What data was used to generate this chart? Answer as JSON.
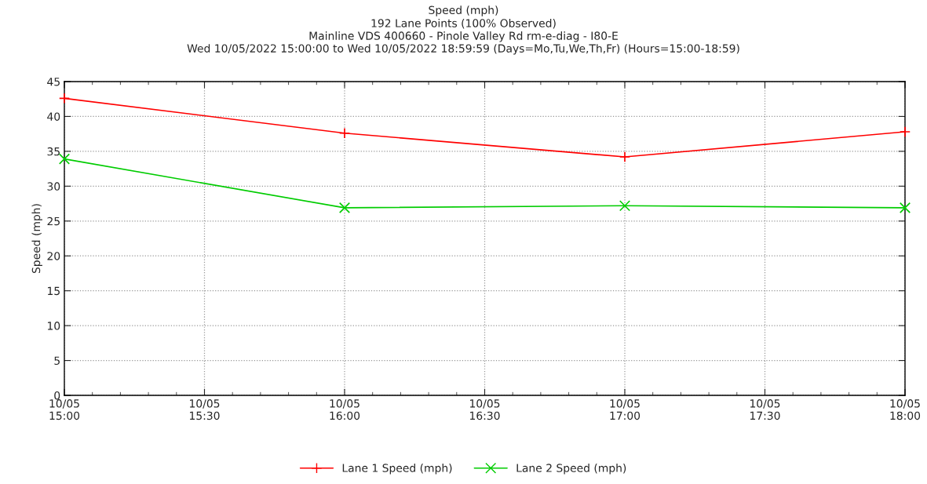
{
  "chart_data": {
    "type": "line",
    "title": "Speed (mph)",
    "subtitle": "192 Lane Points (100% Observed)\nMainline VDS 400660 - Pinole Valley Rd rm-e-diag - I80-E\nWed 10/05/2022 15:00:00 to Wed 10/05/2022 18:59:59 (Days=Mo,Tu,We,Th,Fr) (Hours=15:00-18:59)",
    "ylabel": "Speed (mph)",
    "x": [
      "2022-10-05T15:00",
      "2022-10-05T16:00",
      "2022-10-05T17:00",
      "2022-10-05T18:00"
    ],
    "series": [
      {
        "name": "Lane 1 Speed (mph)",
        "color": "#ff0000",
        "marker": "plus",
        "values": [
          42.6,
          37.6,
          34.2,
          37.8
        ]
      },
      {
        "name": "Lane 2 Speed (mph)",
        "color": "#00cc00",
        "marker": "cross",
        "values": [
          33.9,
          26.9,
          27.2,
          26.9
        ]
      }
    ],
    "xlim": [
      "2022-10-05T15:00",
      "2022-10-05T18:00"
    ],
    "xticks": [
      {
        "value": "2022-10-05T15:00",
        "label": "10/05\n15:00"
      },
      {
        "value": "2022-10-05T15:30",
        "label": "10/05\n15:30"
      },
      {
        "value": "2022-10-05T16:00",
        "label": "10/05\n16:00"
      },
      {
        "value": "2022-10-05T16:30",
        "label": "10/05\n16:30"
      },
      {
        "value": "2022-10-05T17:00",
        "label": "10/05\n17:00"
      },
      {
        "value": "2022-10-05T17:30",
        "label": "10/05\n17:30"
      },
      {
        "value": "2022-10-05T18:00",
        "label": "10/05\n18:00"
      }
    ],
    "ylim": [
      0,
      45
    ],
    "yticks": [
      0,
      5,
      10,
      15,
      20,
      25,
      30,
      35,
      40,
      45
    ],
    "grid": true,
    "legend": "bottom",
    "line_style": "solid"
  }
}
